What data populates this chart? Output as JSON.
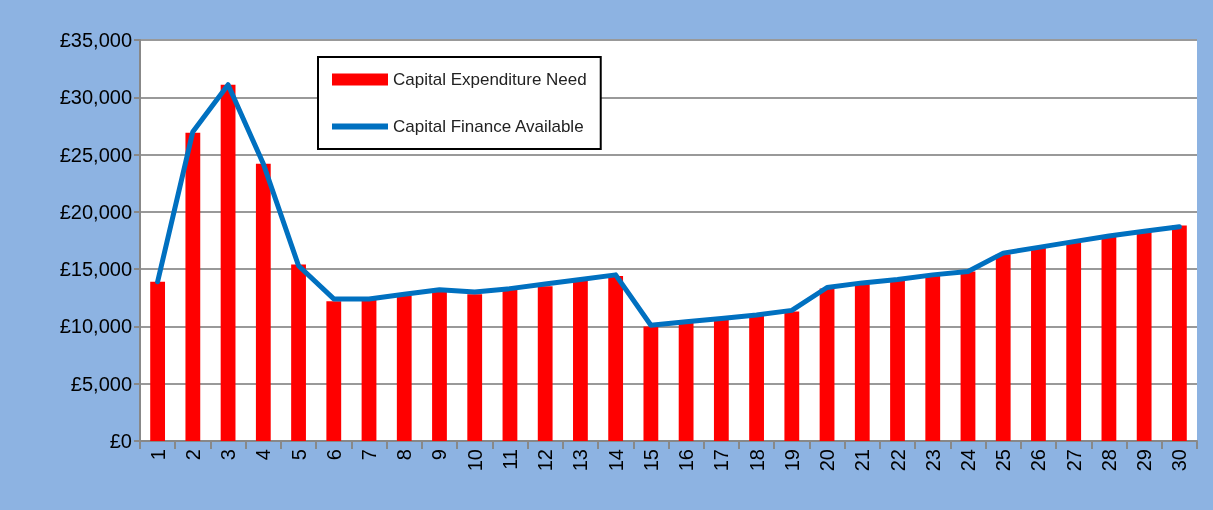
{
  "chart_data": {
    "type": "bar",
    "categories": [
      "1",
      "2",
      "3",
      "4",
      "5",
      "6",
      "7",
      "8",
      "9",
      "10",
      "11",
      "12",
      "13",
      "14",
      "15",
      "16",
      "17",
      "18",
      "19",
      "20",
      "21",
      "22",
      "23",
      "24",
      "25",
      "26",
      "27",
      "28",
      "29",
      "30"
    ],
    "series": [
      {
        "name": "Capital Expenditure Need",
        "color": "#ff0000",
        "values": [
          13900,
          26900,
          31100,
          24200,
          15400,
          12200,
          12400,
          12700,
          13100,
          12800,
          13200,
          13500,
          14000,
          14400,
          10000,
          10300,
          10600,
          10900,
          11300,
          13300,
          13700,
          14100,
          14500,
          14800,
          16300,
          16900,
          17300,
          17800,
          18300,
          18800
        ]
      },
      {
        "name": "Capital Finance Available",
        "type": "line",
        "color": "#0070c0",
        "values": [
          13900,
          27000,
          31100,
          24200,
          15300,
          12400,
          12400,
          12800,
          13200,
          13000,
          13300,
          13700,
          14100,
          14500,
          10100,
          10400,
          10700,
          11000,
          11400,
          13400,
          13800,
          14100,
          14500,
          14800,
          16400,
          16900,
          17400,
          17900,
          18300,
          18700
        ]
      }
    ],
    "ylim": [
      0,
      35000
    ],
    "yticks": [
      {
        "value": 0,
        "label": "£0"
      },
      {
        "value": 5000,
        "label": "£5,000"
      },
      {
        "value": 10000,
        "label": "£10,000"
      },
      {
        "value": 15000,
        "label": "£15,000"
      },
      {
        "value": 20000,
        "label": "£20,000"
      },
      {
        "value": 25000,
        "label": "£25,000"
      },
      {
        "value": 30000,
        "label": "£30,000"
      },
      {
        "value": 35000,
        "label": "£35,000"
      }
    ],
    "grid": "y",
    "legend": "top left",
    "marker": "none",
    "line_style": "solid"
  }
}
